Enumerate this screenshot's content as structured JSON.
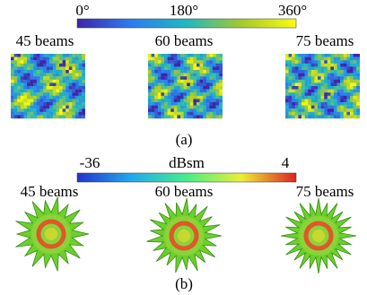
{
  "panel_a": {
    "colorbar": {
      "labels": [
        "0°",
        "180°",
        "360°"
      ]
    },
    "images": [
      {
        "label": "45 beams"
      },
      {
        "label": "60 beams"
      },
      {
        "label": "75 beams"
      }
    ],
    "caption": "(a)"
  },
  "panel_b": {
    "colorbar": {
      "labels": [
        "-36",
        "dBsm",
        "4"
      ]
    },
    "images": [
      {
        "label": "45 beams"
      },
      {
        "label": "60 beams"
      },
      {
        "label": "75 beams"
      }
    ],
    "caption": "(b)"
  }
}
